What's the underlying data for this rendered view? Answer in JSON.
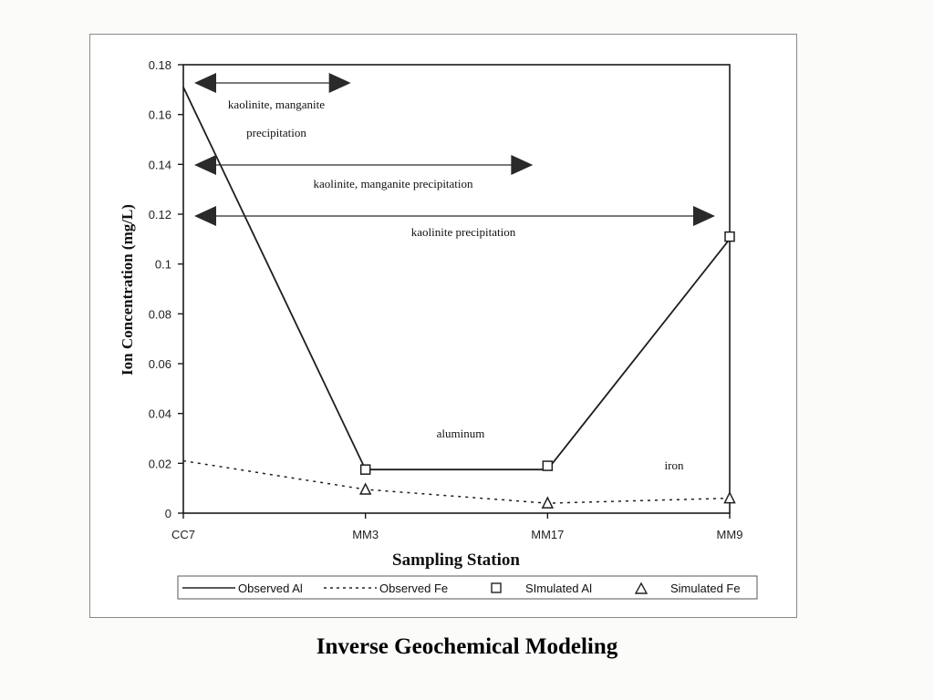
{
  "caption": "Inverse Geochemical Modeling",
  "chart_data": {
    "type": "line",
    "categories": [
      "CC7",
      "MM3",
      "MM17",
      "MM9"
    ],
    "xlabel": "Sampling Station",
    "ylabel": "Ion Concentration (mg/L)",
    "ylim": [
      0,
      0.18
    ],
    "yticks": [
      0,
      0.02,
      0.04,
      0.06,
      0.08,
      0.1,
      0.12,
      0.14,
      0.16,
      0.18
    ],
    "ytick_labels": [
      "0",
      "0.02",
      "0.04",
      "0.06",
      "0.08",
      "0.1",
      "0.12",
      "0.14",
      "0.16",
      "0.18"
    ],
    "grid": false,
    "legend_position": "bottom",
    "series": [
      {
        "name": "Observed Al",
        "style": "solid",
        "values": [
          0.171,
          0.0175,
          0.0175,
          0.11
        ]
      },
      {
        "name": "Observed Fe",
        "style": "dashed",
        "values": [
          0.021,
          0.0095,
          0.004,
          0.006
        ]
      },
      {
        "name": "SImulated Al",
        "style": "square-marker",
        "values": [
          null,
          0.0175,
          0.019,
          0.111
        ]
      },
      {
        "name": "Simulated Fe",
        "style": "triangle-marker",
        "values": [
          null,
          0.0095,
          0.004,
          0.006
        ]
      }
    ],
    "annotations": {
      "series_labels": [
        {
          "text": "aluminum",
          "near": "MM3-MM17"
        },
        {
          "text": "iron",
          "near": "MM9"
        }
      ],
      "ranges": [
        {
          "lines": [
            "kaolinite, manganite",
            "precipitation"
          ],
          "from": "CC7",
          "to": "MM3"
        },
        {
          "lines": [
            "kaolinite, manganite precipitation"
          ],
          "from": "CC7",
          "to": "MM17"
        },
        {
          "lines": [
            "kaolinite precipitation"
          ],
          "from": "CC7",
          "to": "MM9"
        }
      ]
    }
  }
}
